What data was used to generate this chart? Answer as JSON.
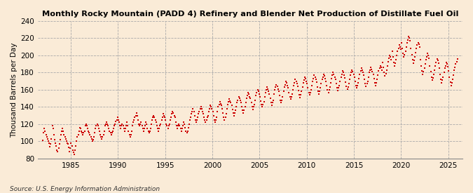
{
  "title": "Monthly Rocky Mountain (PADD 4) Refinery and Blender Net Production of Distillate Fuel Oil",
  "ylabel": "Thousand Barrels per Day",
  "source": "Source: U.S. Energy Information Administration",
  "background_color": "#faebd7",
  "dot_color": "#cc0000",
  "ylim": [
    80,
    240
  ],
  "yticks": [
    80,
    100,
    120,
    140,
    160,
    180,
    200,
    220,
    240
  ],
  "xlim_start": 1981.5,
  "xlim_end": 2026.5,
  "xticks": [
    1985,
    1990,
    1995,
    2000,
    2005,
    2010,
    2015,
    2020,
    2025
  ],
  "start_year": 1982,
  "start_month": 1,
  "values": [
    101,
    110,
    115,
    112,
    108,
    105,
    103,
    100,
    98,
    94,
    97,
    103,
    118,
    115,
    108,
    102,
    98,
    95,
    90,
    88,
    92,
    97,
    102,
    108,
    112,
    115,
    112,
    108,
    105,
    103,
    100,
    98,
    97,
    93,
    88,
    92,
    98,
    95,
    90,
    87,
    85,
    90,
    95,
    100,
    105,
    108,
    112,
    116,
    115,
    112,
    110,
    108,
    110,
    112,
    118,
    120,
    118,
    115,
    112,
    110,
    108,
    105,
    103,
    100,
    102,
    105,
    110,
    115,
    118,
    120,
    118,
    115,
    112,
    108,
    105,
    103,
    105,
    108,
    112,
    118,
    120,
    122,
    120,
    118,
    115,
    112,
    110,
    108,
    110,
    112,
    115,
    118,
    120,
    123,
    125,
    128,
    125,
    122,
    118,
    115,
    118,
    120,
    118,
    115,
    112,
    115,
    118,
    122,
    118,
    112,
    108,
    105,
    108,
    112,
    118,
    122,
    125,
    128,
    130,
    133,
    130,
    125,
    120,
    118,
    120,
    122,
    118,
    115,
    112,
    115,
    118,
    122,
    120,
    115,
    112,
    110,
    112,
    115,
    120,
    125,
    128,
    130,
    128,
    125,
    122,
    118,
    115,
    112,
    115,
    118,
    120,
    125,
    128,
    132,
    130,
    128,
    125,
    120,
    118,
    115,
    118,
    120,
    125,
    128,
    132,
    135,
    133,
    130,
    128,
    122,
    118,
    115,
    118,
    120,
    118,
    115,
    112,
    115,
    118,
    122,
    120,
    116,
    112,
    110,
    112,
    116,
    120,
    125,
    128,
    132,
    135,
    138,
    135,
    130,
    125,
    122,
    125,
    128,
    132,
    135,
    138,
    140,
    138,
    135,
    132,
    128,
    125,
    122,
    125,
    128,
    130,
    135,
    138,
    142,
    140,
    138,
    135,
    130,
    125,
    122,
    125,
    128,
    135,
    140,
    143,
    146,
    144,
    142,
    138,
    133,
    128,
    125,
    128,
    132,
    138,
    143,
    146,
    149,
    147,
    145,
    142,
    137,
    133,
    130,
    133,
    136,
    140,
    145,
    148,
    152,
    150,
    148,
    145,
    140,
    136,
    133,
    136,
    140,
    145,
    150,
    153,
    157,
    155,
    152,
    150,
    145,
    140,
    137,
    140,
    143,
    148,
    153,
    157,
    160,
    158,
    155,
    152,
    147,
    143,
    140,
    143,
    146,
    152,
    157,
    160,
    163,
    161,
    158,
    155,
    150,
    145,
    142,
    145,
    148,
    155,
    160,
    163,
    166,
    164,
    161,
    158,
    153,
    148,
    145,
    148,
    152,
    158,
    163,
    166,
    170,
    168,
    165,
    162,
    157,
    152,
    149,
    152,
    155,
    160,
    165,
    168,
    172,
    170,
    167,
    164,
    159,
    154,
    151,
    154,
    158,
    163,
    168,
    171,
    175,
    173,
    170,
    167,
    162,
    157,
    154,
    157,
    160,
    165,
    170,
    173,
    177,
    175,
    172,
    169,
    163,
    158,
    155,
    158,
    162,
    167,
    172,
    175,
    178,
    176,
    173,
    170,
    165,
    160,
    157,
    160,
    163,
    168,
    173,
    177,
    180,
    178,
    175,
    172,
    167,
    162,
    159,
    162,
    165,
    170,
    175,
    178,
    182,
    180,
    177,
    174,
    169,
    164,
    161,
    163,
    167,
    172,
    177,
    180,
    183,
    181,
    178,
    175,
    170,
    165,
    162,
    165,
    168,
    173,
    178,
    182,
    185,
    183,
    180,
    177,
    172,
    167,
    164,
    167,
    170,
    175,
    180,
    183,
    186,
    184,
    181,
    178,
    173,
    168,
    165,
    168,
    172,
    177,
    182,
    185,
    188,
    186,
    183,
    192,
    186,
    180,
    176,
    179,
    183,
    188,
    193,
    197,
    200,
    198,
    195,
    205,
    198,
    192,
    188,
    191,
    195,
    200,
    205,
    208,
    212,
    210,
    207,
    215,
    208,
    202,
    198,
    201,
    205,
    210,
    215,
    218,
    222,
    220,
    217,
    208,
    201,
    195,
    191,
    194,
    198,
    203,
    208,
    212,
    215,
    213,
    210,
    195,
    188,
    182,
    178,
    181,
    185,
    190,
    195,
    198,
    202,
    200,
    197,
    188,
    181,
    175,
    171,
    174,
    178,
    183,
    188,
    192,
    196,
    194,
    191,
    185,
    178,
    172,
    168,
    171,
    175,
    180,
    185,
    188,
    192,
    190,
    187,
    182,
    175,
    169,
    165,
    168,
    172,
    177,
    183,
    186,
    190,
    193,
    196
  ]
}
